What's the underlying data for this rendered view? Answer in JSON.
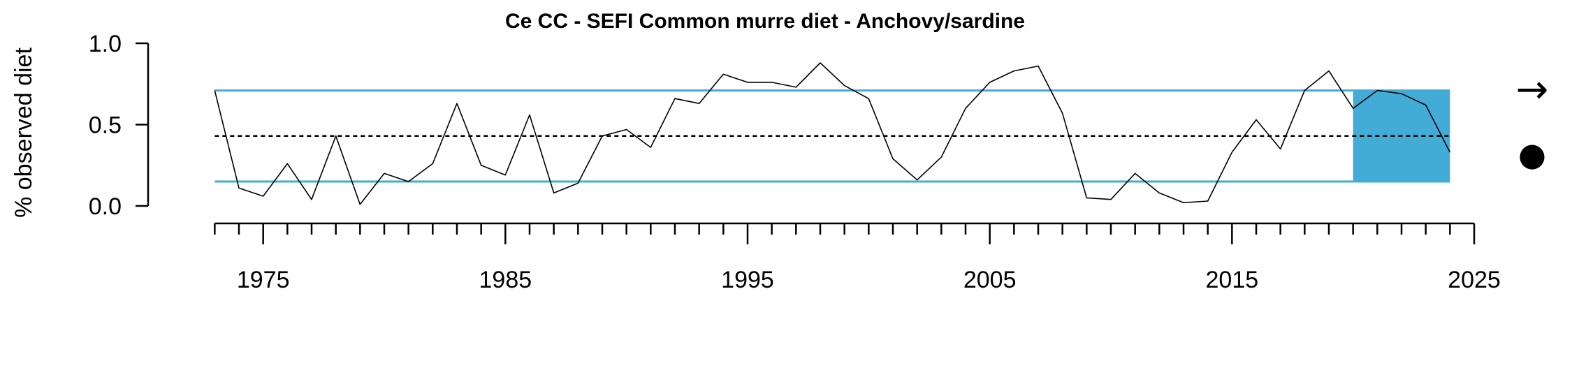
{
  "chart_data": {
    "type": "line",
    "title": "Ce CC - SEFI Common murre diet - Anchovy/sardine",
    "ylabel": "% observed diet",
    "xlabel": "",
    "xlim": [
      1972.5,
      2025
    ],
    "ylim": [
      0,
      1
    ],
    "yticks": [
      0.0,
      0.5,
      1.0
    ],
    "ytick_labels": [
      "0.0",
      "0.5",
      "1.0"
    ],
    "xticks_major": [
      1975,
      1985,
      1995,
      2005,
      2015,
      2025
    ],
    "xtick_labels": [
      "1975",
      "1985",
      "1995",
      "2005",
      "2015",
      "2025"
    ],
    "xticks_minor_range": [
      1973,
      2025
    ],
    "mean": 0.43,
    "sd_upper": 0.71,
    "sd_lower": 0.15,
    "recent_window": [
      2020,
      2024
    ],
    "trend_symbol": "→",
    "mean_symbol": "●",
    "colors": {
      "line": "#000000",
      "band": "#42acd6",
      "text": "#000000"
    },
    "x": [
      1973,
      1974,
      1975,
      1976,
      1977,
      1978,
      1979,
      1980,
      1981,
      1982,
      1983,
      1984,
      1985,
      1986,
      1987,
      1988,
      1989,
      1990,
      1991,
      1992,
      1993,
      1994,
      1995,
      1996,
      1997,
      1998,
      1999,
      2000,
      2001,
      2002,
      2003,
      2004,
      2005,
      2006,
      2007,
      2008,
      2009,
      2010,
      2011,
      2012,
      2013,
      2014,
      2015,
      2016,
      2017,
      2018,
      2019,
      2020,
      2021,
      2022,
      2023,
      2024
    ],
    "y": [
      0.71,
      0.11,
      0.06,
      0.26,
      0.04,
      0.43,
      0.01,
      0.2,
      0.15,
      0.26,
      0.63,
      0.25,
      0.19,
      0.56,
      0.08,
      0.14,
      0.43,
      0.47,
      0.36,
      0.66,
      0.63,
      0.81,
      0.76,
      0.76,
      0.73,
      0.88,
      0.74,
      0.66,
      0.29,
      0.16,
      0.3,
      0.6,
      0.76,
      0.83,
      0.86,
      0.57,
      0.05,
      0.04,
      0.2,
      0.08,
      0.02,
      0.03,
      0.33,
      0.53,
      0.35,
      0.71,
      0.83,
      0.6,
      0.71,
      0.69,
      0.62,
      0.33
    ]
  }
}
